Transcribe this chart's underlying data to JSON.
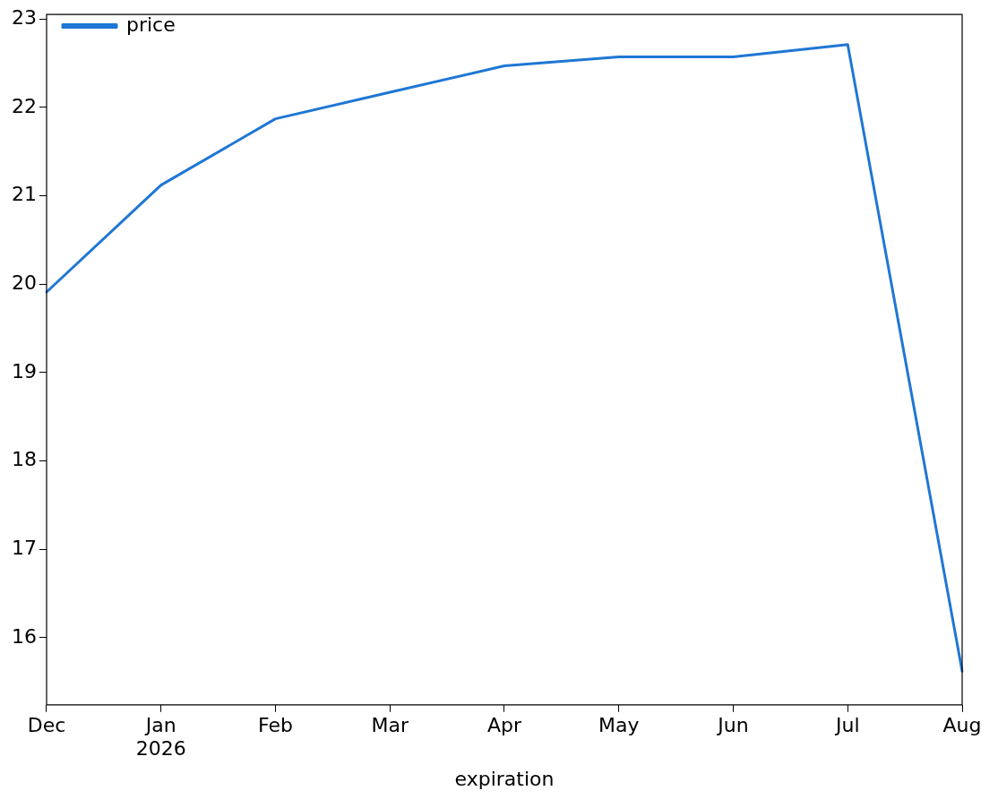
{
  "chart_data": {
    "type": "line",
    "xlabel": "expiration",
    "categories": [
      "Dec",
      "Jan\n2026",
      "Feb",
      "Mar",
      "Apr",
      "May",
      "Jun",
      "Jul",
      "Aug"
    ],
    "series": [
      {
        "name": "price",
        "color": "#1f77d4",
        "values": [
          19.91,
          21.12,
          21.87,
          22.17,
          22.47,
          22.57,
          22.57,
          22.71,
          15.62
        ]
      }
    ],
    "ylim": [
      15.24,
      23.05
    ],
    "yticks": [
      16,
      17,
      18,
      19,
      20,
      21,
      22,
      23
    ],
    "grid": false,
    "legend": "top left",
    "marker": "none",
    "line_style": "solid"
  }
}
